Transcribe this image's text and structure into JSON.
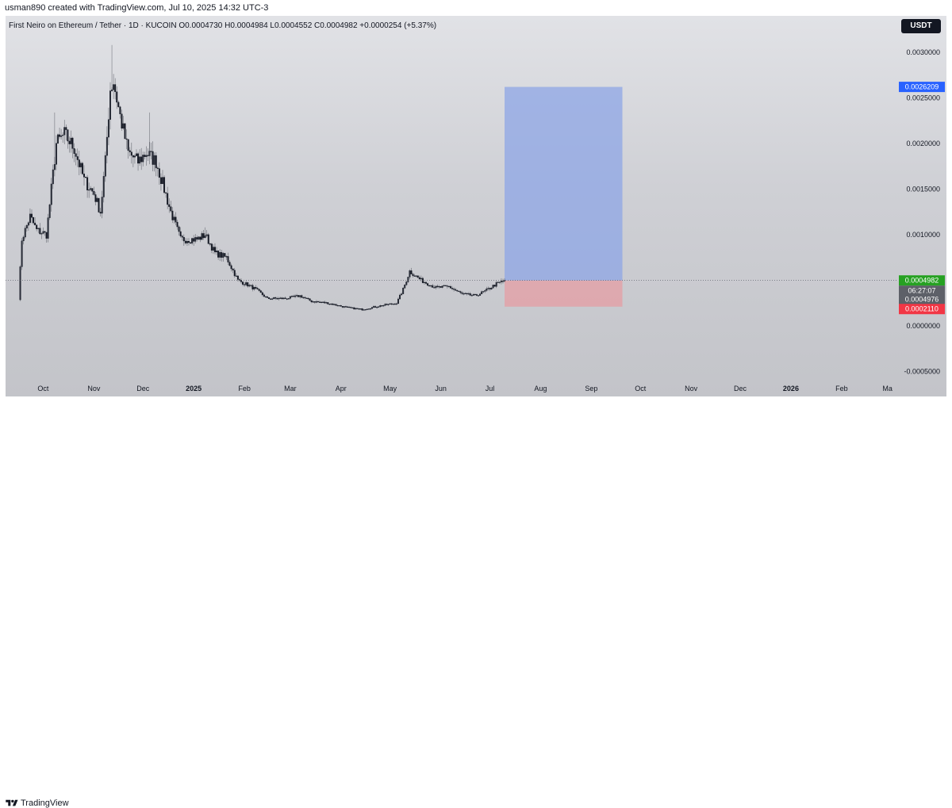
{
  "attribution": "usman890 created with TradingView.com, Jul 10, 2025 14:32 UTC-3",
  "legend": "First Neiro on Ethereum / Tether · 1D · KUCOIN  O0.0004730  H0.0004984  L0.0004552  C0.0004982  +0.0000254 (+5.37%)",
  "currency": "USDT",
  "brand": "TradingView",
  "colors": {
    "candles": "#131722",
    "profit_zone": "#8ea6e6",
    "loss_zone": "#e3a0a6",
    "target_label": "#2962ff",
    "price_label": "#26a122",
    "stop_label": "#f23645",
    "countdown_label": "#5d6068"
  },
  "chart_data": {
    "type": "candlestick",
    "symbol": "First Neiro on Ethereum / Tether",
    "interval": "1D",
    "exchange": "KUCOIN",
    "ylim": [
      -0.0006,
      0.0034
    ],
    "xlim": [
      "2024-09-08",
      "2026-03-07"
    ],
    "y_ticks": [
      "0.0030000",
      "0.0025000",
      "0.0020000",
      "0.0015000",
      "0.0010000",
      "0.0000000",
      "-0.0005000"
    ],
    "x_ticks": [
      {
        "date": "2024-10-01",
        "label": "Oct"
      },
      {
        "date": "2024-11-01",
        "label": "Nov"
      },
      {
        "date": "2024-12-01",
        "label": "Dec"
      },
      {
        "date": "2025-01-01",
        "label": "2025"
      },
      {
        "date": "2025-02-01",
        "label": "Feb"
      },
      {
        "date": "2025-03-01",
        "label": "Mar"
      },
      {
        "date": "2025-04-01",
        "label": "Apr"
      },
      {
        "date": "2025-05-01",
        "label": "May"
      },
      {
        "date": "2025-06-01",
        "label": "Jun"
      },
      {
        "date": "2025-07-01",
        "label": "Jul"
      },
      {
        "date": "2025-08-01",
        "label": "Aug"
      },
      {
        "date": "2025-09-01",
        "label": "Sep"
      },
      {
        "date": "2025-10-01",
        "label": "Oct"
      },
      {
        "date": "2025-11-01",
        "label": "Nov"
      },
      {
        "date": "2025-12-01",
        "label": "Dec"
      },
      {
        "date": "2026-01-01",
        "label": "2026"
      },
      {
        "date": "2026-02-01",
        "label": "Feb"
      },
      {
        "date": "2026-03-01",
        "label": "Ma"
      }
    ],
    "price_path": [
      {
        "date": "2024-09-16",
        "close": 0.0003
      },
      {
        "date": "2024-09-18",
        "close": 0.00095
      },
      {
        "date": "2024-09-23",
        "close": 0.0012
      },
      {
        "date": "2024-09-27",
        "close": 0.00105
      },
      {
        "date": "2024-10-03",
        "close": 0.001
      },
      {
        "date": "2024-10-09",
        "close": 0.002
      },
      {
        "date": "2024-10-14",
        "close": 0.0021
      },
      {
        "date": "2024-10-20",
        "close": 0.00195
      },
      {
        "date": "2024-10-26",
        "close": 0.0016
      },
      {
        "date": "2024-11-01",
        "close": 0.00145
      },
      {
        "date": "2024-11-05",
        "close": 0.00125
      },
      {
        "date": "2024-11-08",
        "close": 0.0018
      },
      {
        "date": "2024-11-11",
        "close": 0.0026
      },
      {
        "date": "2024-11-13",
        "close": 0.00268
      },
      {
        "date": "2024-11-17",
        "close": 0.0023
      },
      {
        "date": "2024-11-22",
        "close": 0.0019
      },
      {
        "date": "2024-11-28",
        "close": 0.0018
      },
      {
        "date": "2024-12-03",
        "close": 0.0019
      },
      {
        "date": "2024-12-09",
        "close": 0.0018
      },
      {
        "date": "2024-12-14",
        "close": 0.0015
      },
      {
        "date": "2024-12-18",
        "close": 0.00125
      },
      {
        "date": "2024-12-24",
        "close": 0.00095
      },
      {
        "date": "2025-01-03",
        "close": 0.00095
      },
      {
        "date": "2025-01-08",
        "close": 0.001
      },
      {
        "date": "2025-01-14",
        "close": 0.0008
      },
      {
        "date": "2025-01-21",
        "close": 0.00075
      },
      {
        "date": "2025-01-28",
        "close": 0.0005
      },
      {
        "date": "2025-02-03",
        "close": 0.00045
      },
      {
        "date": "2025-02-08",
        "close": 0.0004
      },
      {
        "date": "2025-02-15",
        "close": 0.0003
      },
      {
        "date": "2025-02-26",
        "close": 0.0003
      },
      {
        "date": "2025-03-07",
        "close": 0.00033
      },
      {
        "date": "2025-03-14",
        "close": 0.00027
      },
      {
        "date": "2025-03-24",
        "close": 0.00025
      },
      {
        "date": "2025-04-05",
        "close": 0.0002
      },
      {
        "date": "2025-04-14",
        "close": 0.00018
      },
      {
        "date": "2025-04-25",
        "close": 0.00022
      },
      {
        "date": "2025-05-05",
        "close": 0.00025
      },
      {
        "date": "2025-05-09",
        "close": 0.0004
      },
      {
        "date": "2025-05-13",
        "close": 0.0006
      },
      {
        "date": "2025-05-20",
        "close": 0.0005
      },
      {
        "date": "2025-05-29",
        "close": 0.00042
      },
      {
        "date": "2025-06-06",
        "close": 0.00043
      },
      {
        "date": "2025-06-14",
        "close": 0.00035
      },
      {
        "date": "2025-06-22",
        "close": 0.00033
      },
      {
        "date": "2025-06-28",
        "close": 0.00038
      },
      {
        "date": "2025-07-05",
        "close": 0.00046
      },
      {
        "date": "2025-07-10",
        "close": 0.0004982
      }
    ],
    "spikes": [
      {
        "date": "2024-11-12",
        "high": 0.00308
      },
      {
        "date": "2024-12-05",
        "high": 0.00234
      },
      {
        "date": "2024-10-08",
        "high": 0.00234
      },
      {
        "date": "2025-01-08",
        "high": 0.00108
      }
    ],
    "position": {
      "type": "long",
      "start": "2025-07-10",
      "end": "2025-09-20",
      "entry": 0.0004982,
      "target": 0.0026209,
      "stop": 0.000211
    },
    "price_labels": {
      "target": "0.0026209",
      "last": "0.0004982",
      "countdown": "06:27:07",
      "prev": "0.0004976",
      "stop": "0.0002110"
    }
  }
}
